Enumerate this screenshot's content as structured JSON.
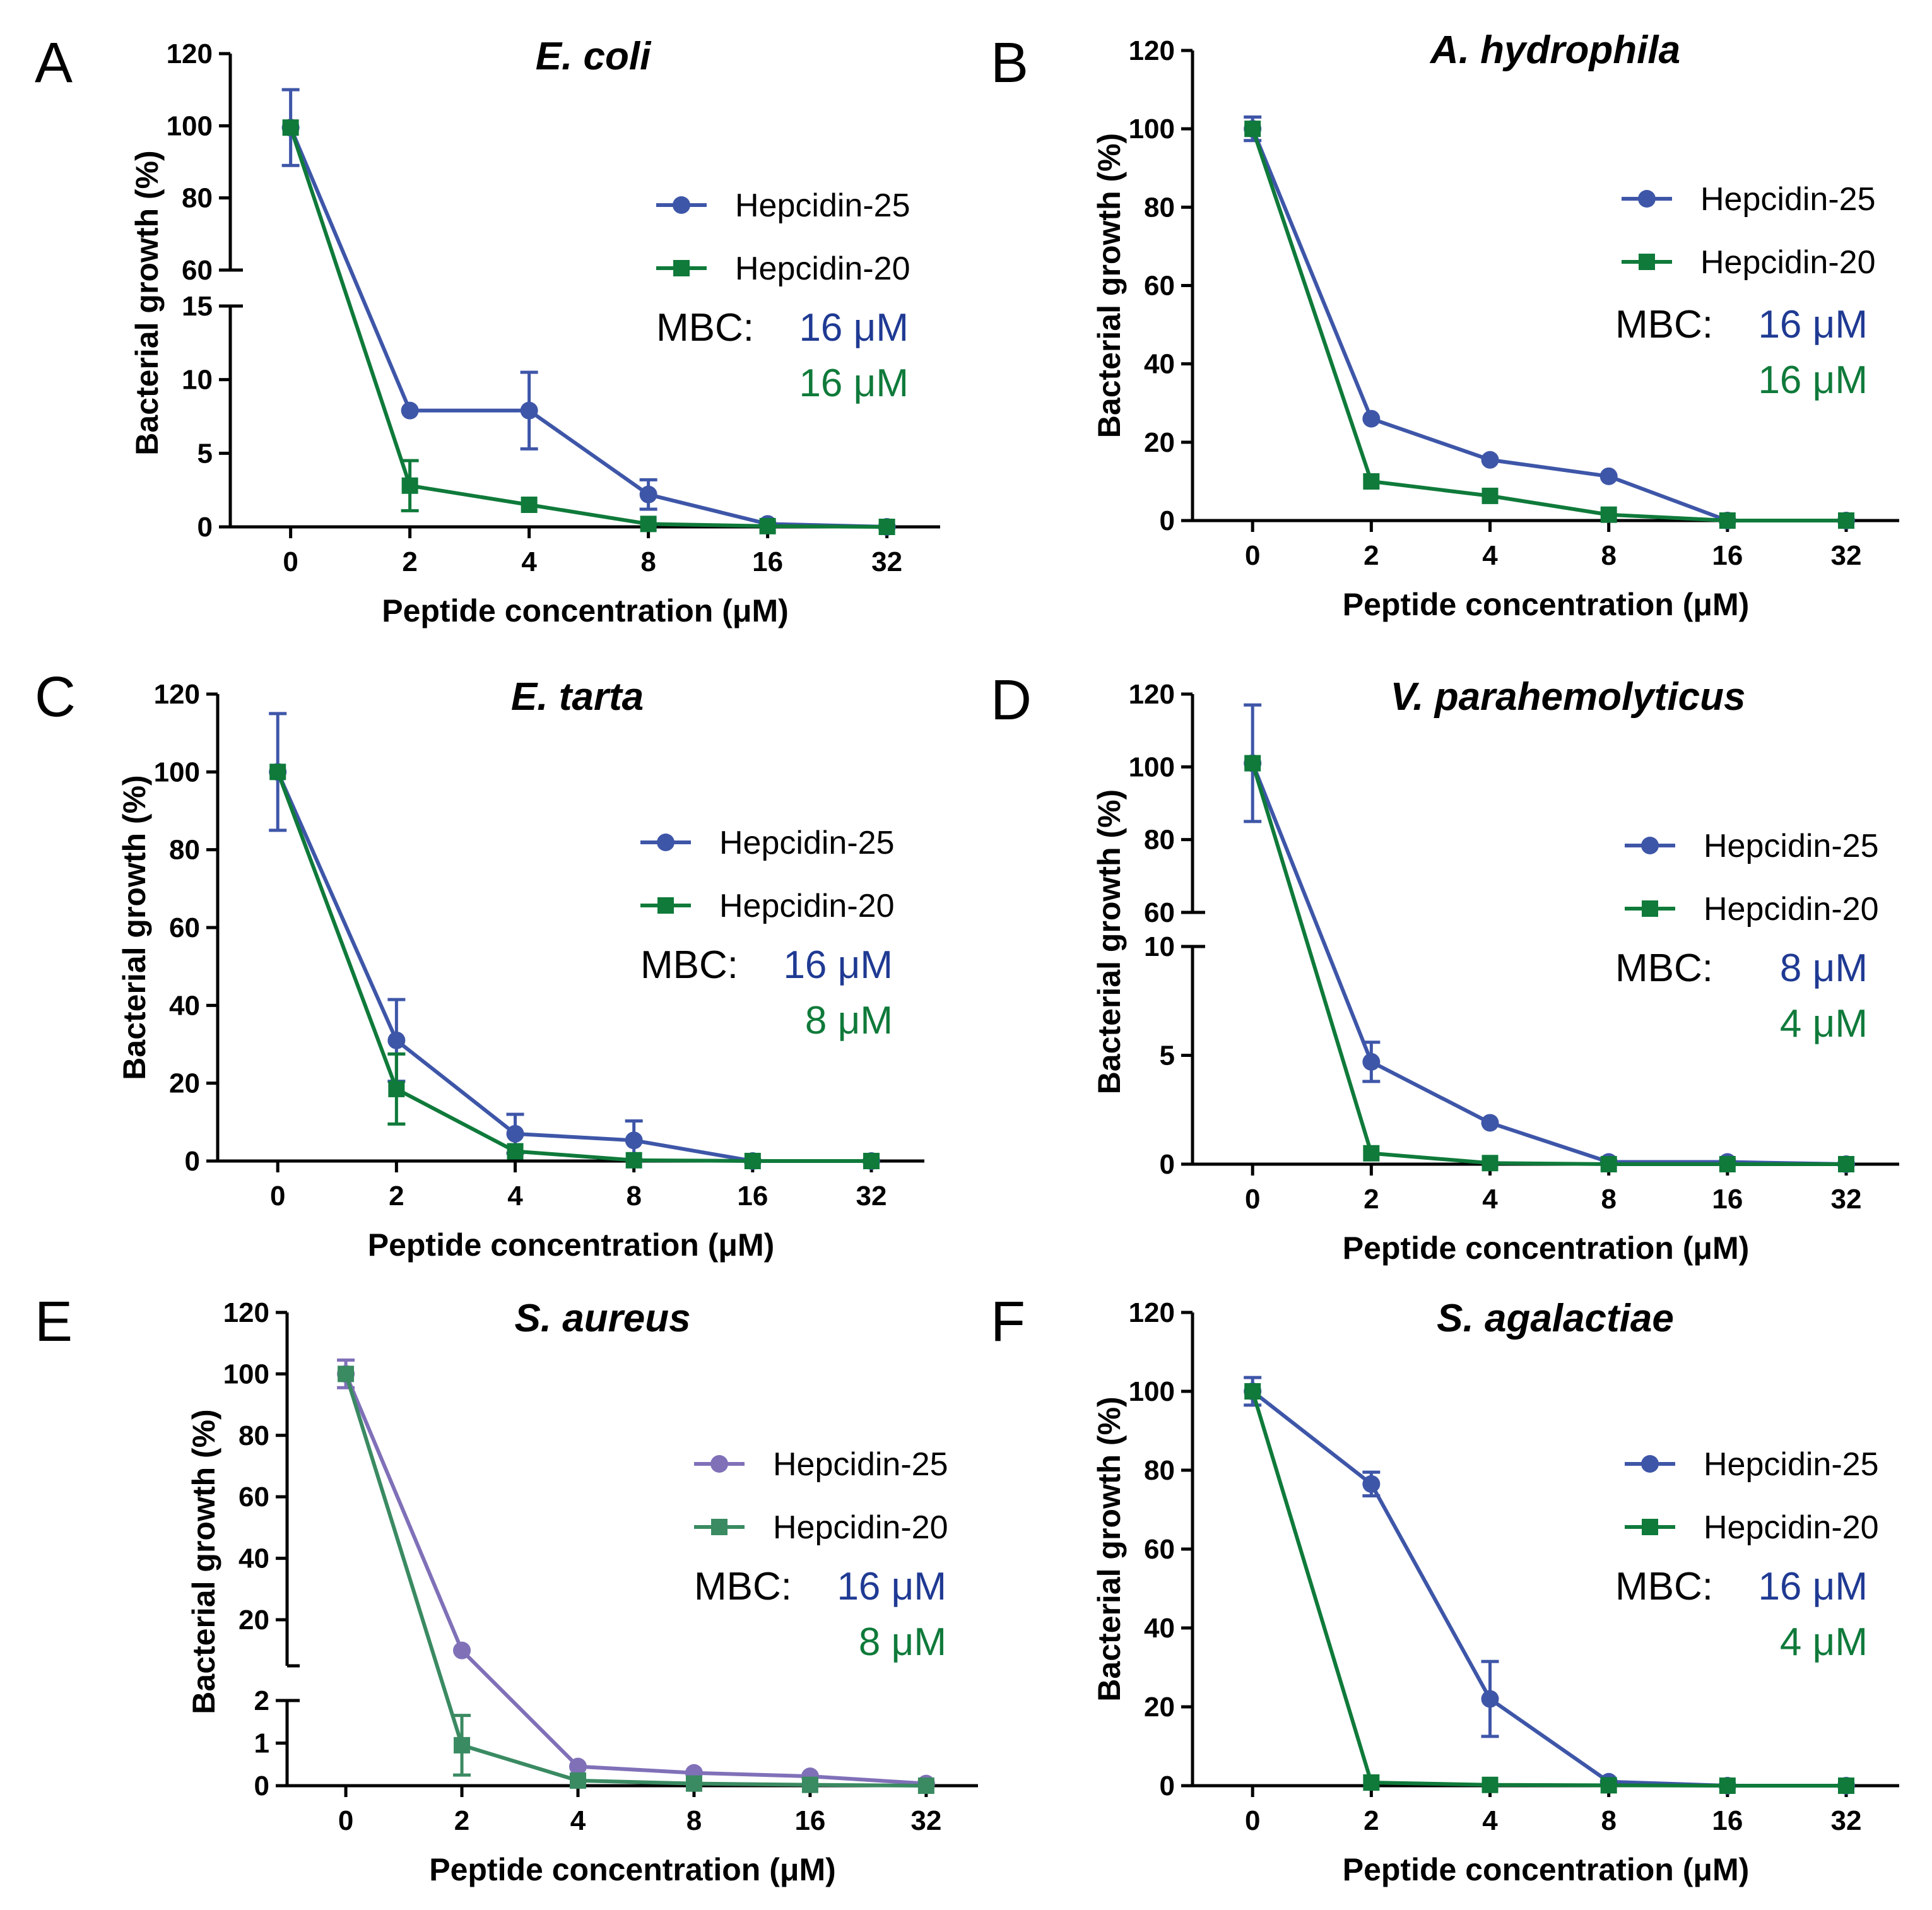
{
  "figure": {
    "panels": [
      "A",
      "B",
      "C",
      "D",
      "E",
      "F"
    ],
    "legend": [
      "Hepcidin-25",
      "Hepcidin-20"
    ],
    "mbc_prefix": "MBC:"
  },
  "chart_data": [
    {
      "type": "line",
      "panel": "A",
      "title": "E. coli",
      "xlabel": "Peptide concentration (μM)",
      "ylabel": "Bacterial growth (%)",
      "categories": [
        "0",
        "2",
        "4",
        "8",
        "16",
        "32"
      ],
      "broken_axis": {
        "lower_range": [
          0,
          15
        ],
        "upper_range": [
          60,
          120
        ],
        "lower_ticks": [
          0,
          5,
          10,
          15
        ],
        "upper_ticks": [
          60,
          80,
          100,
          120
        ]
      },
      "series": [
        {
          "name": "Hepcidin-25",
          "color": "#3e56a8",
          "marker": "circle",
          "values": [
            99.5,
            7.9,
            7.9,
            2.2,
            0.2,
            0
          ],
          "errors": [
            10.5,
            0,
            2.6,
            1.0,
            0,
            0
          ]
        },
        {
          "name": "Hepcidin-20",
          "color": "#0f7a3a",
          "marker": "square",
          "values": [
            99.5,
            2.8,
            1.5,
            0.2,
            0.05,
            0
          ],
          "errors": [
            0,
            1.7,
            0,
            0,
            0,
            0
          ]
        }
      ],
      "mbc": [
        {
          "text": "16 μM",
          "color": "#1f3a93"
        },
        {
          "text": "16 μM",
          "color": "#0f7a3a"
        }
      ]
    },
    {
      "type": "line",
      "panel": "B",
      "title": "A. hydrophila",
      "xlabel": "Peptide concentration (μM)",
      "ylabel": "Bacterial growth (%)",
      "categories": [
        "0",
        "2",
        "4",
        "8",
        "16",
        "32"
      ],
      "ylim": [
        0,
        120
      ],
      "yticks": [
        0,
        20,
        40,
        60,
        80,
        100,
        120
      ],
      "series": [
        {
          "name": "Hepcidin-25",
          "color": "#3e56a8",
          "marker": "circle",
          "values": [
            100,
            26,
            15.5,
            11.3,
            0,
            0
          ],
          "errors": [
            3,
            0,
            0,
            0,
            0,
            0
          ]
        },
        {
          "name": "Hepcidin-20",
          "color": "#0f7a3a",
          "marker": "square",
          "values": [
            100,
            10,
            6.3,
            1.5,
            0,
            0
          ],
          "errors": [
            0,
            0,
            0,
            0,
            0,
            0
          ]
        }
      ],
      "mbc": [
        {
          "text": "16 μM",
          "color": "#1f3a93"
        },
        {
          "text": "16 μM",
          "color": "#0f7a3a"
        }
      ]
    },
    {
      "type": "line",
      "panel": "C",
      "title": "E. tarta",
      "xlabel": "Peptide concentration (μM)",
      "ylabel": "Bacterial growth (%)",
      "categories": [
        "0",
        "2",
        "4",
        "8",
        "16",
        "32"
      ],
      "ylim": [
        0,
        120
      ],
      "yticks": [
        0,
        20,
        40,
        60,
        80,
        100,
        120
      ],
      "series": [
        {
          "name": "Hepcidin-25",
          "color": "#3e56a8",
          "marker": "circle",
          "values": [
            100,
            31,
            7,
            5.3,
            0,
            0
          ],
          "errors": [
            15,
            10.5,
            5,
            5,
            0,
            0
          ]
        },
        {
          "name": "Hepcidin-20",
          "color": "#0f7a3a",
          "marker": "square",
          "values": [
            100,
            18.5,
            2.5,
            0.2,
            0,
            0
          ],
          "errors": [
            0,
            9,
            0,
            0,
            0,
            0
          ]
        }
      ],
      "mbc": [
        {
          "text": "16 μM",
          "color": "#1f3a93"
        },
        {
          "text": "8 μM",
          "color": "#0f7a3a"
        }
      ]
    },
    {
      "type": "line",
      "panel": "D",
      "title": "V. parahemolyticus",
      "xlabel": "Peptide concentration (μM)",
      "ylabel": "Bacterial growth (%)",
      "categories": [
        "0",
        "2",
        "4",
        "8",
        "16",
        "32"
      ],
      "broken_axis": {
        "lower_range": [
          0,
          10
        ],
        "upper_range": [
          60,
          120
        ],
        "lower_ticks": [
          0,
          5,
          10
        ],
        "upper_ticks": [
          60,
          80,
          100,
          120
        ]
      },
      "series": [
        {
          "name": "Hepcidin-25",
          "color": "#3e56a8",
          "marker": "circle",
          "values": [
            101,
            4.7,
            1.9,
            0.1,
            0.1,
            0
          ],
          "errors": [
            16,
            0.9,
            0,
            0,
            0,
            0
          ]
        },
        {
          "name": "Hepcidin-20",
          "color": "#0f7a3a",
          "marker": "square",
          "values": [
            101,
            0.5,
            0.05,
            0,
            0,
            0
          ],
          "errors": [
            0,
            0,
            0,
            0,
            0,
            0
          ]
        }
      ],
      "mbc": [
        {
          "text": "8 μM",
          "color": "#1f3a93"
        },
        {
          "text": "4 μM",
          "color": "#0f7a3a"
        }
      ]
    },
    {
      "type": "line",
      "panel": "E",
      "title": "S. aureus",
      "xlabel": "Peptide concentration (μM)",
      "ylabel": "Bacterial growth (%)",
      "categories": [
        "0",
        "2",
        "4",
        "8",
        "16",
        "32"
      ],
      "broken_axis": {
        "lower_range": [
          0,
          2
        ],
        "upper_range": [
          5,
          120
        ],
        "lower_ticks": [
          0,
          1,
          2
        ],
        "upper_ticks": [
          20,
          40,
          60,
          80,
          100,
          120
        ]
      },
      "series": [
        {
          "name": "Hepcidin-25",
          "color": "#8070b8",
          "marker": "circle",
          "values": [
            100,
            10,
            0.45,
            0.3,
            0.22,
            0.05
          ],
          "errors": [
            4.5,
            0,
            0,
            0,
            0,
            0
          ]
        },
        {
          "name": "Hepcidin-20",
          "color": "#3a8a62",
          "marker": "square",
          "values": [
            100,
            0.95,
            0.12,
            0.05,
            0.02,
            0
          ],
          "errors": [
            0,
            0.7,
            0,
            0,
            0,
            0
          ]
        }
      ],
      "mbc": [
        {
          "text": "16 μM",
          "color": "#1f3a93"
        },
        {
          "text": "8 μM",
          "color": "#0f7a3a"
        }
      ]
    },
    {
      "type": "line",
      "panel": "F",
      "title": "S. agalactiae",
      "xlabel": "Peptide concentration (μM)",
      "ylabel": "Bacterial growth (%)",
      "categories": [
        "0",
        "2",
        "4",
        "8",
        "16",
        "32"
      ],
      "ylim": [
        0,
        120
      ],
      "yticks": [
        0,
        20,
        40,
        60,
        80,
        100,
        120
      ],
      "series": [
        {
          "name": "Hepcidin-25",
          "color": "#3e56a8",
          "marker": "circle",
          "values": [
            100,
            76.5,
            22,
            1,
            0,
            0
          ],
          "errors": [
            3.5,
            3,
            9.5,
            0,
            0,
            0
          ]
        },
        {
          "name": "Hepcidin-20",
          "color": "#0f7a3a",
          "marker": "square",
          "values": [
            100,
            0.8,
            0.2,
            0.1,
            0,
            0
          ],
          "errors": [
            0,
            0,
            0,
            0,
            0,
            0
          ]
        }
      ],
      "mbc": [
        {
          "text": "16 μM",
          "color": "#1f3a93"
        },
        {
          "text": "4 μM",
          "color": "#0f7a3a"
        }
      ]
    }
  ]
}
